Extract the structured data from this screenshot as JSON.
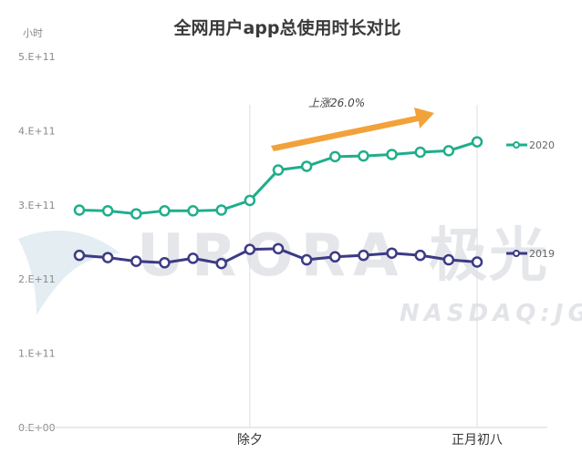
{
  "chart_data": {
    "type": "line",
    "title": "全网用户app总使用时长对比",
    "unit_label": "小时",
    "y_ticks": [
      "0.E+00",
      "1.E+11",
      "2.E+11",
      "3.E+11",
      "4.E+11",
      "5.E+11"
    ],
    "ylim": [
      0,
      500000000000
    ],
    "x_tick_labels": [
      {
        "index": 6,
        "label": "除夕"
      },
      {
        "index": 14,
        "label": "正月初八"
      }
    ],
    "point_count": 15,
    "series": [
      {
        "name": "2020",
        "color": "#1fae8c",
        "values": [
          293000000000,
          292000000000,
          288000000000,
          292000000000,
          292000000000,
          293000000000,
          306000000000,
          347000000000,
          352000000000,
          365000000000,
          366000000000,
          368000000000,
          371000000000,
          373000000000,
          385000000000
        ]
      },
      {
        "name": "2019",
        "color": "#3d3a86",
        "values": [
          232000000000,
          229000000000,
          224000000000,
          222000000000,
          228000000000,
          221000000000,
          240000000000,
          241000000000,
          226000000000,
          230000000000,
          232000000000,
          235000000000,
          232000000000,
          226000000000,
          223000000000
        ]
      }
    ],
    "annotation": {
      "text": "上涨26.0%",
      "color": "#f2a23a"
    },
    "watermark": {
      "main": "URORA",
      "brand": "极光",
      "sub": "NASDAQ:JG"
    },
    "grid": false,
    "legend_position": "right"
  }
}
